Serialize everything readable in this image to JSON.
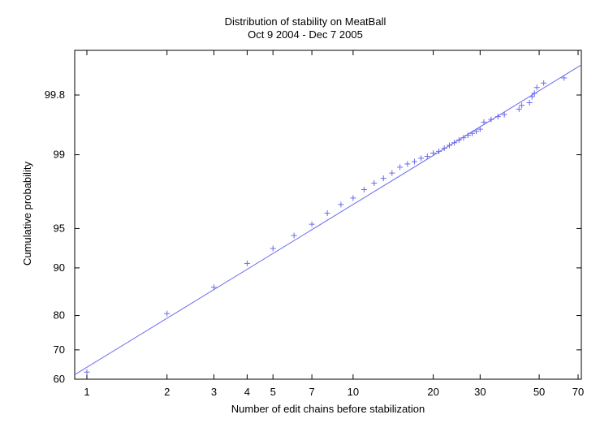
{
  "chart_data": {
    "type": "scatter",
    "title": "Distribution of stability on MeatBall",
    "subtitle": "Oct 9 2004 - Dec 7 2005",
    "xlabel": "Number of edit chains before stabilization",
    "ylabel": "Cumulative probability",
    "x_scale": "log",
    "y_scale": "normal-probability",
    "xlim": [
      0.9,
      72
    ],
    "ylim": [
      60,
      99.95
    ],
    "x_ticks": [
      1,
      2,
      3,
      4,
      5,
      7,
      10,
      20,
      30,
      50,
      70
    ],
    "y_ticks": [
      60,
      70,
      80,
      90,
      95,
      99,
      99.8
    ],
    "x_tick_labels": [
      "1",
      "2",
      "3",
      "4",
      "5",
      "7",
      "10",
      "20",
      "30",
      "50",
      "70"
    ],
    "y_tick_labels": [
      "60",
      "70",
      "80",
      "90",
      "95",
      "99",
      "99.8"
    ],
    "grid": false,
    "colors": {
      "series": "#6a6aee",
      "axes": "#000000"
    },
    "series": [
      {
        "mark": "plus",
        "points": [
          [
            1,
            62.5
          ],
          [
            2,
            80.5
          ],
          [
            3,
            86.5
          ],
          [
            4,
            90.7
          ],
          [
            5,
            92.8
          ],
          [
            6,
            94.3
          ],
          [
            7,
            95.4
          ],
          [
            8,
            96.3
          ],
          [
            9,
            96.9
          ],
          [
            10,
            97.3
          ],
          [
            11,
            97.75
          ],
          [
            12,
            98.05
          ],
          [
            13,
            98.25
          ],
          [
            14,
            98.45
          ],
          [
            15,
            98.65
          ],
          [
            16,
            98.75
          ],
          [
            17,
            98.82
          ],
          [
            18,
            98.91
          ],
          [
            19,
            98.96
          ],
          [
            20,
            99.04
          ],
          [
            21,
            99.08
          ],
          [
            22,
            99.15
          ],
          [
            23,
            99.21
          ],
          [
            24,
            99.26
          ],
          [
            25,
            99.31
          ],
          [
            26,
            99.35
          ],
          [
            27,
            99.39
          ],
          [
            28,
            99.42
          ],
          [
            29,
            99.45
          ],
          [
            30,
            99.48
          ],
          [
            31,
            99.57
          ],
          [
            33,
            99.6
          ],
          [
            35,
            99.63
          ],
          [
            37,
            99.65
          ],
          [
            42,
            99.7
          ],
          [
            43,
            99.73
          ],
          [
            46,
            99.75
          ],
          [
            47,
            99.79
          ],
          [
            48,
            99.81
          ],
          [
            49,
            99.84
          ],
          [
            52,
            99.86
          ],
          [
            62,
            99.88
          ]
        ]
      },
      {
        "mark": "line",
        "points": [
          [
            0.9,
            61.6
          ],
          [
            72,
            99.92
          ]
        ]
      }
    ]
  }
}
